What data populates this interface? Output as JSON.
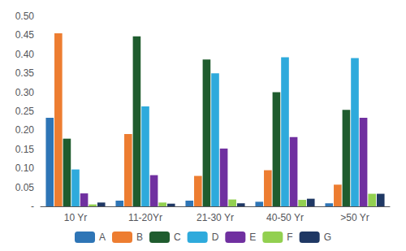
{
  "chart_data": {
    "type": "bar",
    "categories": [
      "10 Yr",
      "11-20Yr",
      "21-30 Yr",
      "40-50 Yr",
      ">50 Yr"
    ],
    "series": [
      {
        "name": "A",
        "color": "#2E75B6",
        "values": [
          0.233,
          0.015,
          0.015,
          0.012,
          0.008
        ]
      },
      {
        "name": "B",
        "color": "#ED7D31",
        "values": [
          0.455,
          0.19,
          0.08,
          0.095,
          0.057
        ]
      },
      {
        "name": "C",
        "color": "#1F5C2E",
        "values": [
          0.178,
          0.447,
          0.386,
          0.3,
          0.254
        ]
      },
      {
        "name": "D",
        "color": "#2EAADC",
        "values": [
          0.097,
          0.263,
          0.35,
          0.392,
          0.39
        ]
      },
      {
        "name": "E",
        "color": "#7030A0",
        "values": [
          0.034,
          0.082,
          0.152,
          0.182,
          0.233
        ]
      },
      {
        "name": "F",
        "color": "#92D050",
        "values": [
          0.005,
          0.01,
          0.018,
          0.017,
          0.033
        ]
      },
      {
        "name": "G",
        "color": "#1F3864",
        "values": [
          0.01,
          0.007,
          0.008,
          0.02,
          0.033
        ]
      }
    ],
    "ylim": [
      0,
      0.5
    ],
    "yticks": [
      {
        "value": 0,
        "label": "-"
      },
      0.05,
      {
        "value": 0.1,
        "label": "0.10"
      },
      0.15,
      {
        "value": 0.2,
        "label": "0.20"
      },
      0.25,
      {
        "value": 0.3,
        "label": "0.30"
      },
      0.35,
      {
        "value": 0.4,
        "label": "0.40"
      },
      0.45,
      {
        "value": 0.5,
        "label": "0.50"
      }
    ],
    "grid": false,
    "legend": "bottom"
  }
}
